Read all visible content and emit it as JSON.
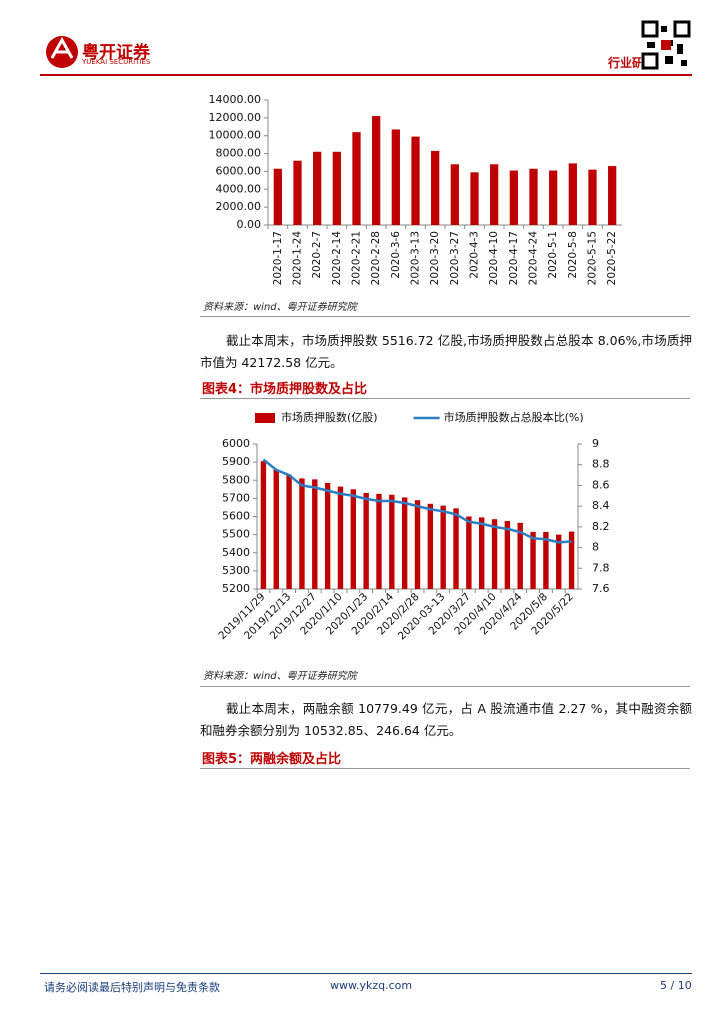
{
  "header": {
    "logo_cn": "粤开证券",
    "logo_en": "YUEKAI SECURITIES",
    "section": "行业研究"
  },
  "chart_data": [
    {
      "type": "bar",
      "categories": [
        "2020-1-17",
        "2020-1-24",
        "2020-2-7",
        "2020-2-14",
        "2020-2-21",
        "2020-2-28",
        "2020-3-6",
        "2020-3-13",
        "2020-3-20",
        "2020-3-27",
        "2020-4-3",
        "2020-4-10",
        "2020-4-17",
        "2020-4-24",
        "2020-5-1",
        "2020-5-8",
        "2020-5-15",
        "2020-5-22"
      ],
      "series": [
        {
          "type": "bar",
          "color": "#c00000",
          "values": [
            6300,
            7200,
            8200,
            8200,
            10400,
            12200,
            10700,
            9900,
            8300,
            6800,
            5900,
            6800,
            6100,
            6300,
            6100,
            6900,
            6200,
            6600
          ]
        }
      ],
      "ylim": [
        0,
        14000
      ],
      "yticks": [
        {
          "value": 0,
          "label": "0.00"
        },
        {
          "value": 2000,
          "label": "2000.00"
        },
        {
          "value": 4000,
          "label": "4000.00"
        },
        {
          "value": 6000,
          "label": "6000.00"
        },
        {
          "value": 8000,
          "label": "8000.00"
        },
        {
          "value": 10000,
          "label": "10000.00"
        },
        {
          "value": 12000,
          "label": "12000.00"
        },
        {
          "value": 14000,
          "label": "14000.00"
        }
      ],
      "grid": false,
      "x_label_rotation": "vertical"
    },
    {
      "type": "combo",
      "categories": [
        "2019/11/29",
        null,
        "2019/12/13",
        null,
        "2019/12/27",
        null,
        "2020/1/10",
        null,
        "2020/1/23",
        null,
        "2020/2/14",
        null,
        "2020/2/28",
        null,
        "2020-03-13",
        null,
        "2020/3/27",
        null,
        "2020/4/10",
        null,
        "2020/4/24",
        null,
        "2020/5/8",
        null,
        "2020/5/22"
      ],
      "series": [
        {
          "name": "市场质押股数(亿股)",
          "type": "bar",
          "color": "#c00000",
          "values": [
            5905,
            5860,
            5830,
            5810,
            5805,
            5785,
            5765,
            5750,
            5730,
            5725,
            5720,
            5705,
            5690,
            5670,
            5660,
            5645,
            5600,
            5595,
            5585,
            5575,
            5565,
            5515,
            5515,
            5500,
            5516.72
          ]
        },
        {
          "name": "市场质押股数占总股本比(%)",
          "type": "line",
          "axis": "y2",
          "color": "#2a7fc4",
          "values": [
            8.85,
            8.75,
            8.7,
            8.6,
            8.58,
            8.55,
            8.52,
            8.5,
            8.47,
            8.45,
            8.45,
            8.43,
            8.4,
            8.37,
            8.35,
            8.32,
            8.25,
            8.23,
            8.2,
            8.18,
            8.15,
            8.09,
            8.08,
            8.05,
            8.06
          ]
        }
      ],
      "ylim": [
        5200,
        6000
      ],
      "yticks": [
        5200,
        5300,
        5400,
        5500,
        5600,
        5700,
        5800,
        5900,
        6000
      ],
      "y2lim": [
        7.6,
        9
      ],
      "y2ticks": [
        7.6,
        7.8,
        8,
        8.2,
        8.4,
        8.6,
        8.8,
        9
      ],
      "grid": false,
      "legend": "top",
      "x_label_rotation": "diagonal"
    }
  ],
  "sources": [
    "资料来源：wind、粤开证券研究院",
    "资料来源：wind、粤开证券研究院"
  ],
  "paragraphs": [
    "截止本周末，市场质押股数 5516.72 亿股,市场质押股数占总股本 8.06%,市场质押市值为 42172.58 亿元。",
    "截止本周末，两融余额 10779.49 亿元，占 A 股流通市值 2.27 %，其中融资余额和融券余额分别为 10532.85、246.64 亿元。"
  ],
  "figure_titles": [
    "图表4：市场质押股数及占比",
    "图表5：两融余额及占比"
  ],
  "footer": {
    "disclaimer": "请务必阅读最后特别声明与免责条款",
    "url": "www.ykzq.com",
    "page": "5 / 10"
  }
}
